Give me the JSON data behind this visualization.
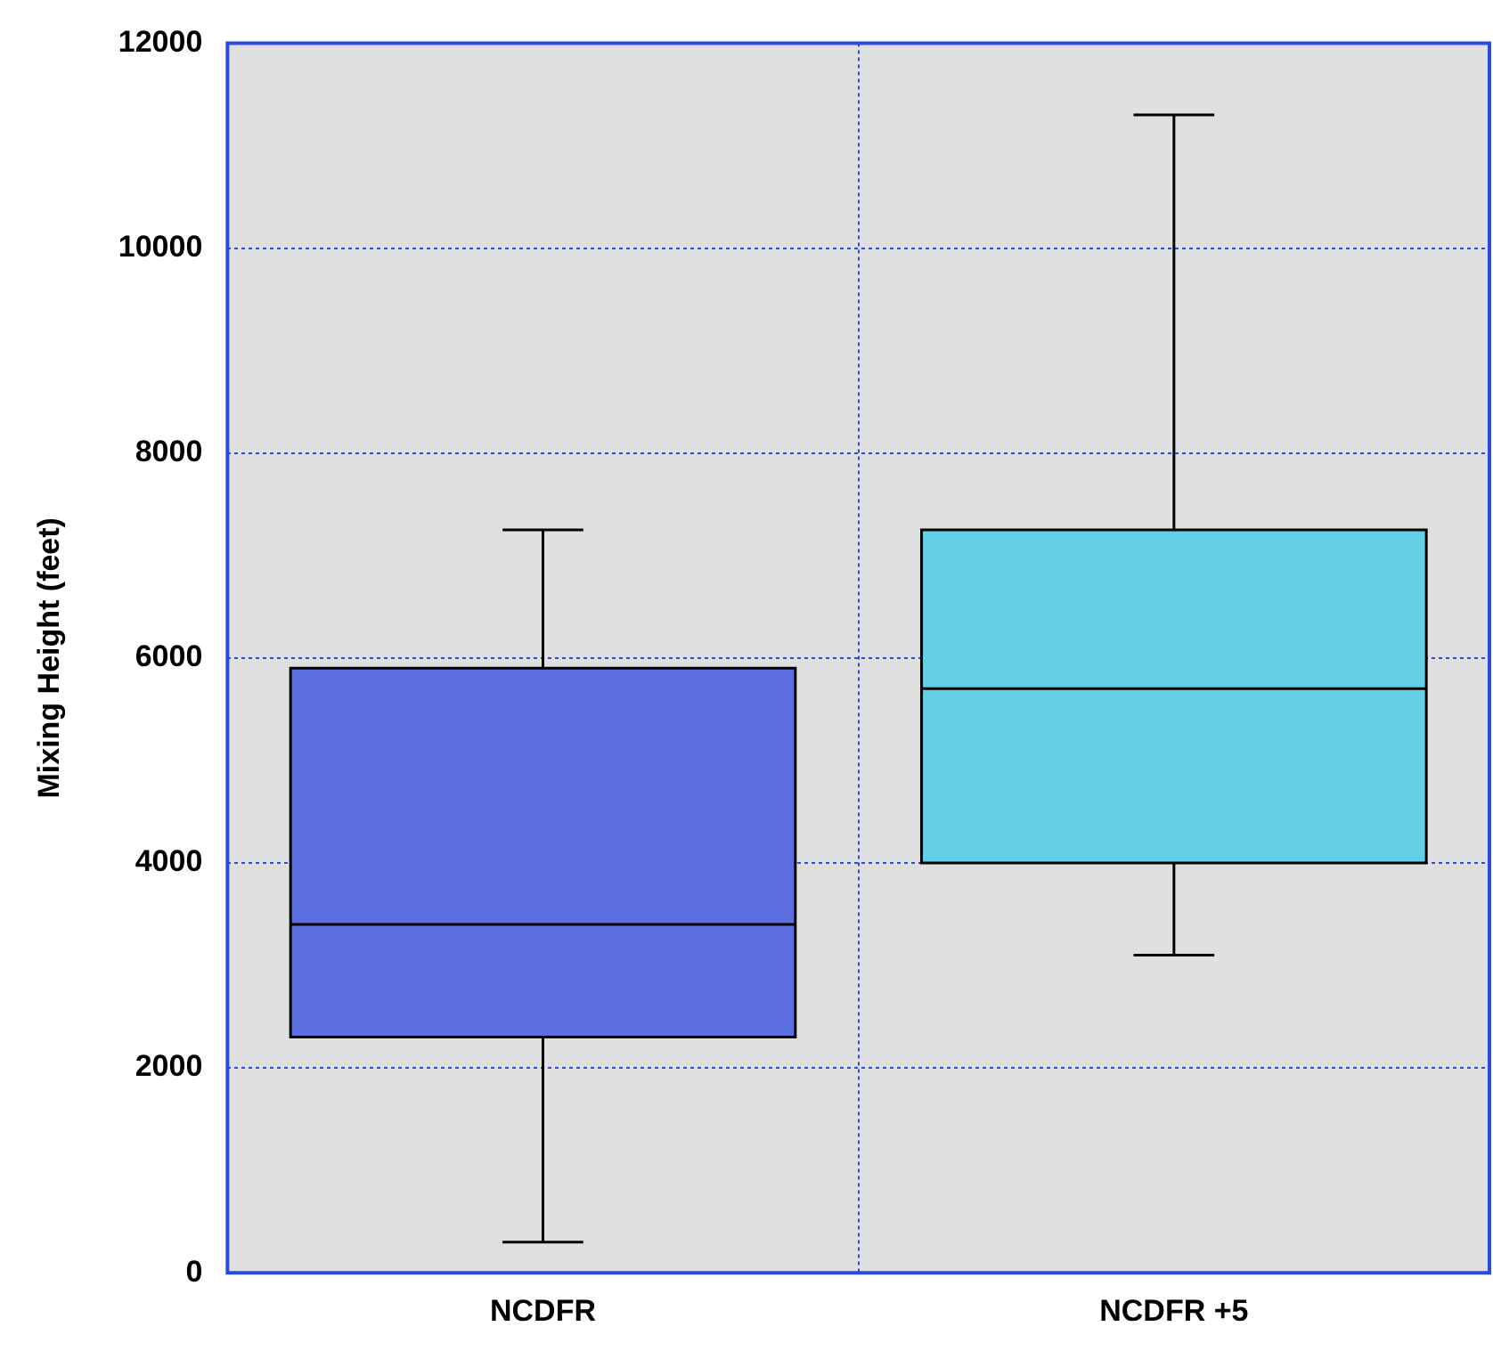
{
  "chart_data": {
    "type": "box",
    "ylabel": "Mixing Height (feet)",
    "categories": [
      "NCDFR",
      "NCDFR +5"
    ],
    "boxes": [
      {
        "low": 300,
        "q1": 2300,
        "median": 3400,
        "q3": 5900,
        "high": 7250
      },
      {
        "low": 3100,
        "q1": 4000,
        "median": 5700,
        "q3": 7250,
        "high": 11300
      }
    ],
    "colors": [
      "#5c6fe0",
      "#62cfe6"
    ],
    "ylim": [
      0,
      12000
    ],
    "yticks": [
      0,
      2000,
      4000,
      6000,
      8000,
      10000,
      12000
    ],
    "grid": true
  }
}
